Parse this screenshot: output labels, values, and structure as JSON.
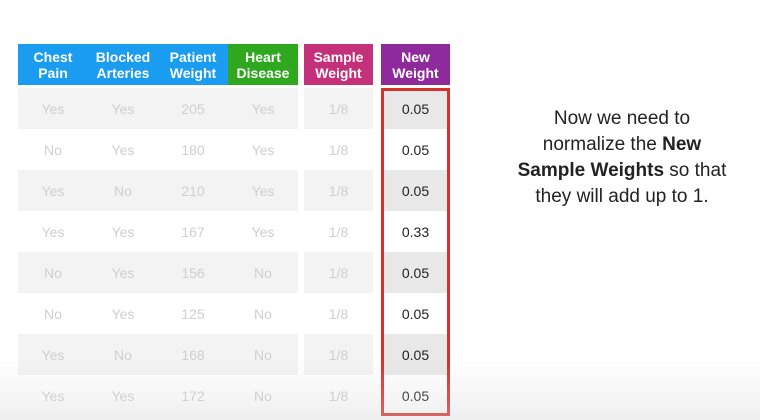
{
  "colors": {
    "blue": "#1a9cf0",
    "green": "#2fa81f",
    "magenta": "#c4317a",
    "purple": "#8e2a9b",
    "red_outline": "#d8312c"
  },
  "headers": {
    "chest_pain": "Chest Pain",
    "blocked_arteries": "Blocked Arteries",
    "patient_weight": "Patient Weight",
    "heart_disease": "Heart Disease",
    "sample_weight": "Sample Weight",
    "new_weight": "New Weight"
  },
  "rows": [
    {
      "chest_pain": "Yes",
      "blocked_arteries": "Yes",
      "patient_weight": "205",
      "heart_disease": "Yes",
      "sample_weight": "1/8",
      "new_weight": "0.05"
    },
    {
      "chest_pain": "No",
      "blocked_arteries": "Yes",
      "patient_weight": "180",
      "heart_disease": "Yes",
      "sample_weight": "1/8",
      "new_weight": "0.05"
    },
    {
      "chest_pain": "Yes",
      "blocked_arteries": "No",
      "patient_weight": "210",
      "heart_disease": "Yes",
      "sample_weight": "1/8",
      "new_weight": "0.05"
    },
    {
      "chest_pain": "Yes",
      "blocked_arteries": "Yes",
      "patient_weight": "167",
      "heart_disease": "Yes",
      "sample_weight": "1/8",
      "new_weight": "0.33"
    },
    {
      "chest_pain": "No",
      "blocked_arteries": "Yes",
      "patient_weight": "156",
      "heart_disease": "No",
      "sample_weight": "1/8",
      "new_weight": "0.05"
    },
    {
      "chest_pain": "No",
      "blocked_arteries": "Yes",
      "patient_weight": "125",
      "heart_disease": "No",
      "sample_weight": "1/8",
      "new_weight": "0.05"
    },
    {
      "chest_pain": "Yes",
      "blocked_arteries": "No",
      "patient_weight": "168",
      "heart_disease": "No",
      "sample_weight": "1/8",
      "new_weight": "0.05"
    },
    {
      "chest_pain": "Yes",
      "blocked_arteries": "Yes",
      "patient_weight": "172",
      "heart_disease": "No",
      "sample_weight": "1/8",
      "new_weight": "0.05"
    }
  ],
  "caption": {
    "line1": "Now we need to",
    "line2_pre": "normalize the ",
    "line2_bold": "New",
    "line3_bold": "Sample Weights",
    "line3_post": " so that",
    "line4": "they will add up to 1."
  }
}
